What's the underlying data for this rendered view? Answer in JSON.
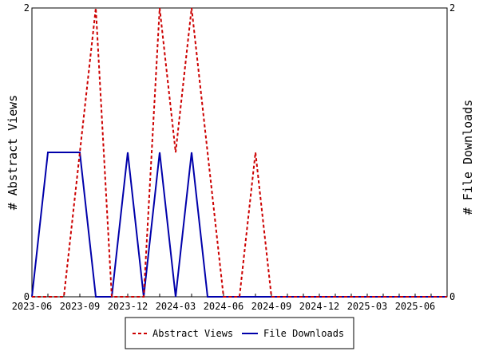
{
  "chart_data": {
    "type": "line",
    "title": "",
    "x": [
      "2023-06",
      "2023-07",
      "2023-08",
      "2023-09",
      "2023-10",
      "2023-11",
      "2023-12",
      "2024-01",
      "2024-02",
      "2024-03",
      "2024-04",
      "2024-05",
      "2024-06",
      "2024-07",
      "2024-08",
      "2024-09",
      "2024-10",
      "2024-11",
      "2024-12",
      "2025-01",
      "2025-02",
      "2025-03",
      "2025-04",
      "2025-05",
      "2025-06",
      "2025-07",
      "2025-08"
    ],
    "x_tick_labels": [
      "2023-06",
      "2023-09",
      "2023-12",
      "2024-03",
      "2024-06",
      "2024-09",
      "2024-12",
      "2025-03",
      "2025-06"
    ],
    "ylabel_left": "# Abstract Views",
    "ylabel_right": "# File Downloads",
    "ylim_left": [
      0,
      2
    ],
    "ylim_right": [
      0,
      2
    ],
    "y_tick_labels_left": [
      "0",
      "2"
    ],
    "y_tick_labels_right": [
      "0",
      "2"
    ],
    "grid": false,
    "legend_position": "bottom",
    "series": [
      {
        "name": "Abstract Views",
        "axis": "left",
        "color": "#cc0000",
        "line_style": "dashed",
        "values": [
          0,
          0,
          0,
          1,
          2,
          0,
          0,
          0,
          2,
          1,
          2,
          1,
          0,
          0,
          1,
          0,
          0,
          0,
          0,
          0,
          0,
          0,
          0,
          0,
          0,
          0,
          0
        ]
      },
      {
        "name": "File Downloads",
        "axis": "right",
        "color": "#0000aa",
        "line_style": "solid",
        "values": [
          0,
          1,
          1,
          1,
          0,
          0,
          1,
          0,
          1,
          0,
          1,
          0,
          0,
          0,
          0,
          0,
          0,
          0,
          0,
          0,
          0,
          0,
          0,
          0,
          0,
          0,
          0
        ]
      }
    ]
  }
}
